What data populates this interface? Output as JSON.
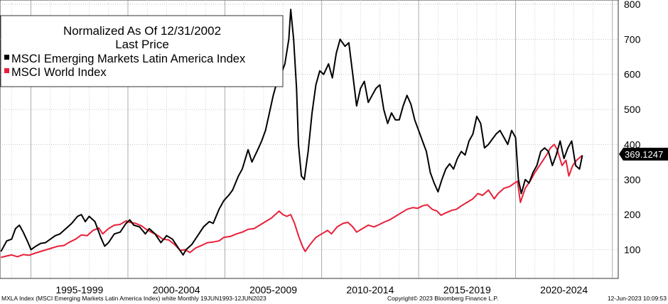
{
  "chart_data": {
    "type": "line",
    "title": "Normalized As Of 12/31/2002",
    "subtitle": "Last Price",
    "xlabel": "",
    "ylabel": "",
    "x_tick_labels": [
      "1995-1999",
      "2000-2004",
      "2005-2009",
      "2010-2014",
      "2015-2019",
      "2020-2024"
    ],
    "ylim": [
      18,
      812
    ],
    "y_ticks": [
      100,
      200,
      300,
      400,
      500,
      600,
      700,
      800
    ],
    "xlim": [
      1993.4,
      2025.3
    ],
    "grid": true,
    "legend_position": "top-left",
    "last_value_label": "369.1247",
    "series": [
      {
        "name": "MSCI Emerging Markets Latin America Index",
        "color": "#000000",
        "points": [
          [
            1993.45,
            95
          ],
          [
            1993.75,
            125
          ],
          [
            1994.0,
            130
          ],
          [
            1994.2,
            160
          ],
          [
            1994.4,
            170
          ],
          [
            1994.6,
            150
          ],
          [
            1994.85,
            120
          ],
          [
            1995.0,
            100
          ],
          [
            1995.25,
            110
          ],
          [
            1995.5,
            118
          ],
          [
            1995.75,
            120
          ],
          [
            1996.0,
            130
          ],
          [
            1996.25,
            140
          ],
          [
            1996.5,
            145
          ],
          [
            1996.8,
            160
          ],
          [
            1997.1,
            175
          ],
          [
            1997.4,
            195
          ],
          [
            1997.6,
            200
          ],
          [
            1997.8,
            180
          ],
          [
            1998.0,
            195
          ],
          [
            1998.3,
            180
          ],
          [
            1998.6,
            135
          ],
          [
            1998.8,
            110
          ],
          [
            1999.0,
            120
          ],
          [
            1999.3,
            145
          ],
          [
            1999.6,
            150
          ],
          [
            1999.9,
            175
          ],
          [
            2000.1,
            185
          ],
          [
            2000.3,
            170
          ],
          [
            2000.6,
            165
          ],
          [
            2000.9,
            145
          ],
          [
            2001.1,
            160
          ],
          [
            2001.4,
            145
          ],
          [
            2001.7,
            120
          ],
          [
            2002.0,
            140
          ],
          [
            2002.3,
            130
          ],
          [
            2002.6,
            105
          ],
          [
            2002.85,
            85
          ],
          [
            2003.0,
            100
          ],
          [
            2003.3,
            115
          ],
          [
            2003.6,
            140
          ],
          [
            2003.9,
            165
          ],
          [
            2004.2,
            180
          ],
          [
            2004.4,
            175
          ],
          [
            2004.7,
            215
          ],
          [
            2004.95,
            240
          ],
          [
            2005.2,
            255
          ],
          [
            2005.4,
            270
          ],
          [
            2005.7,
            310
          ],
          [
            2005.9,
            330
          ],
          [
            2006.2,
            385
          ],
          [
            2006.4,
            350
          ],
          [
            2006.7,
            385
          ],
          [
            2006.9,
            410
          ],
          [
            2007.1,
            440
          ],
          [
            2007.3,
            490
          ],
          [
            2007.5,
            540
          ],
          [
            2007.7,
            580
          ],
          [
            2007.9,
            600
          ],
          [
            2008.1,
            630
          ],
          [
            2008.3,
            700
          ],
          [
            2008.4,
            785
          ],
          [
            2008.55,
            700
          ],
          [
            2008.7,
            560
          ],
          [
            2008.8,
            400
          ],
          [
            2008.95,
            310
          ],
          [
            2009.1,
            300
          ],
          [
            2009.3,
            380
          ],
          [
            2009.5,
            490
          ],
          [
            2009.7,
            570
          ],
          [
            2009.9,
            610
          ],
          [
            2010.1,
            600
          ],
          [
            2010.35,
            630
          ],
          [
            2010.55,
            590
          ],
          [
            2010.75,
            660
          ],
          [
            2010.95,
            700
          ],
          [
            2011.2,
            680
          ],
          [
            2011.4,
            690
          ],
          [
            2011.6,
            600
          ],
          [
            2011.8,
            510
          ],
          [
            2012.0,
            560
          ],
          [
            2012.2,
            580
          ],
          [
            2012.4,
            520
          ],
          [
            2012.6,
            540
          ],
          [
            2012.8,
            560
          ],
          [
            2013.0,
            570
          ],
          [
            2013.2,
            500
          ],
          [
            2013.4,
            460
          ],
          [
            2013.6,
            490
          ],
          [
            2013.8,
            470
          ],
          [
            2014.0,
            470
          ],
          [
            2014.2,
            510
          ],
          [
            2014.4,
            540
          ],
          [
            2014.6,
            515
          ],
          [
            2014.8,
            470
          ],
          [
            2015.0,
            440
          ],
          [
            2015.2,
            410
          ],
          [
            2015.4,
            380
          ],
          [
            2015.6,
            320
          ],
          [
            2015.8,
            290
          ],
          [
            2016.0,
            265
          ],
          [
            2016.2,
            300
          ],
          [
            2016.4,
            330
          ],
          [
            2016.6,
            345
          ],
          [
            2016.8,
            330
          ],
          [
            2017.0,
            360
          ],
          [
            2017.2,
            380
          ],
          [
            2017.4,
            370
          ],
          [
            2017.6,
            410
          ],
          [
            2017.8,
            430
          ],
          [
            2018.0,
            480
          ],
          [
            2018.2,
            460
          ],
          [
            2018.4,
            390
          ],
          [
            2018.6,
            400
          ],
          [
            2018.8,
            415
          ],
          [
            2019.0,
            430
          ],
          [
            2019.2,
            440
          ],
          [
            2019.4,
            420
          ],
          [
            2019.6,
            400
          ],
          [
            2019.8,
            440
          ],
          [
            2020.0,
            420
          ],
          [
            2020.15,
            300
          ],
          [
            2020.3,
            260
          ],
          [
            2020.5,
            300
          ],
          [
            2020.7,
            290
          ],
          [
            2020.9,
            320
          ],
          [
            2021.1,
            340
          ],
          [
            2021.3,
            380
          ],
          [
            2021.5,
            390
          ],
          [
            2021.7,
            380
          ],
          [
            2021.9,
            340
          ],
          [
            2022.1,
            370
          ],
          [
            2022.3,
            410
          ],
          [
            2022.5,
            360
          ],
          [
            2022.7,
            390
          ],
          [
            2022.9,
            410
          ],
          [
            2023.1,
            340
          ],
          [
            2023.3,
            330
          ],
          [
            2023.45,
            369
          ]
        ]
      },
      {
        "name": "MSCI World Index",
        "color": "#e8203a",
        "points": [
          [
            1993.45,
            78
          ],
          [
            1993.75,
            82
          ],
          [
            1994.0,
            85
          ],
          [
            1994.3,
            80
          ],
          [
            1994.6,
            86
          ],
          [
            1994.9,
            84
          ],
          [
            1995.2,
            90
          ],
          [
            1995.5,
            95
          ],
          [
            1995.8,
            100
          ],
          [
            1996.1,
            105
          ],
          [
            1996.4,
            110
          ],
          [
            1996.7,
            112
          ],
          [
            1997.0,
            122
          ],
          [
            1997.3,
            130
          ],
          [
            1997.6,
            142
          ],
          [
            1997.9,
            140
          ],
          [
            1998.2,
            155
          ],
          [
            1998.5,
            162
          ],
          [
            1998.7,
            145
          ],
          [
            1999.0,
            160
          ],
          [
            1999.3,
            170
          ],
          [
            1999.6,
            172
          ],
          [
            1999.9,
            182
          ],
          [
            2000.1,
            178
          ],
          [
            2000.4,
            175
          ],
          [
            2000.7,
            168
          ],
          [
            2000.95,
            158
          ],
          [
            2001.2,
            150
          ],
          [
            2001.5,
            142
          ],
          [
            2001.8,
            130
          ],
          [
            2002.1,
            128
          ],
          [
            2002.4,
            115
          ],
          [
            2002.7,
            98
          ],
          [
            2002.95,
            100
          ],
          [
            2003.2,
            92
          ],
          [
            2003.5,
            105
          ],
          [
            2003.8,
            112
          ],
          [
            2004.1,
            120
          ],
          [
            2004.4,
            122
          ],
          [
            2004.7,
            125
          ],
          [
            2004.95,
            135
          ],
          [
            2005.3,
            138
          ],
          [
            2005.6,
            145
          ],
          [
            2005.9,
            150
          ],
          [
            2006.2,
            158
          ],
          [
            2006.5,
            160
          ],
          [
            2006.8,
            170
          ],
          [
            2007.1,
            180
          ],
          [
            2007.4,
            190
          ],
          [
            2007.6,
            200
          ],
          [
            2007.8,
            210
          ],
          [
            2008.0,
            200
          ],
          [
            2008.2,
            195
          ],
          [
            2008.4,
            200
          ],
          [
            2008.6,
            175
          ],
          [
            2008.8,
            140
          ],
          [
            2009.0,
            110
          ],
          [
            2009.15,
            95
          ],
          [
            2009.4,
            115
          ],
          [
            2009.7,
            135
          ],
          [
            2010.0,
            145
          ],
          [
            2010.3,
            155
          ],
          [
            2010.5,
            145
          ],
          [
            2010.8,
            165
          ],
          [
            2011.1,
            175
          ],
          [
            2011.35,
            178
          ],
          [
            2011.6,
            165
          ],
          [
            2011.8,
            150
          ],
          [
            2012.1,
            160
          ],
          [
            2012.4,
            170
          ],
          [
            2012.7,
            165
          ],
          [
            2012.9,
            170
          ],
          [
            2013.2,
            178
          ],
          [
            2013.5,
            185
          ],
          [
            2013.8,
            195
          ],
          [
            2014.1,
            205
          ],
          [
            2014.4,
            215
          ],
          [
            2014.7,
            220
          ],
          [
            2014.95,
            218
          ],
          [
            2015.2,
            225
          ],
          [
            2015.45,
            228
          ],
          [
            2015.7,
            215
          ],
          [
            2015.95,
            210
          ],
          [
            2016.15,
            198
          ],
          [
            2016.4,
            205
          ],
          [
            2016.7,
            212
          ],
          [
            2016.95,
            215
          ],
          [
            2017.2,
            225
          ],
          [
            2017.5,
            235
          ],
          [
            2017.8,
            245
          ],
          [
            2018.05,
            260
          ],
          [
            2018.3,
            255
          ],
          [
            2018.6,
            270
          ],
          [
            2018.9,
            245
          ],
          [
            2019.1,
            260
          ],
          [
            2019.4,
            275
          ],
          [
            2019.7,
            280
          ],
          [
            2019.95,
            290
          ],
          [
            2020.1,
            295
          ],
          [
            2020.25,
            235
          ],
          [
            2020.5,
            275
          ],
          [
            2020.8,
            300
          ],
          [
            2021.0,
            320
          ],
          [
            2021.3,
            345
          ],
          [
            2021.6,
            370
          ],
          [
            2021.8,
            390
          ],
          [
            2022.0,
            400
          ],
          [
            2022.15,
            385
          ],
          [
            2022.4,
            340
          ],
          [
            2022.6,
            355
          ],
          [
            2022.75,
            310
          ],
          [
            2022.95,
            340
          ],
          [
            2023.15,
            355
          ],
          [
            2023.45,
            369
          ]
        ]
      }
    ]
  }
}
